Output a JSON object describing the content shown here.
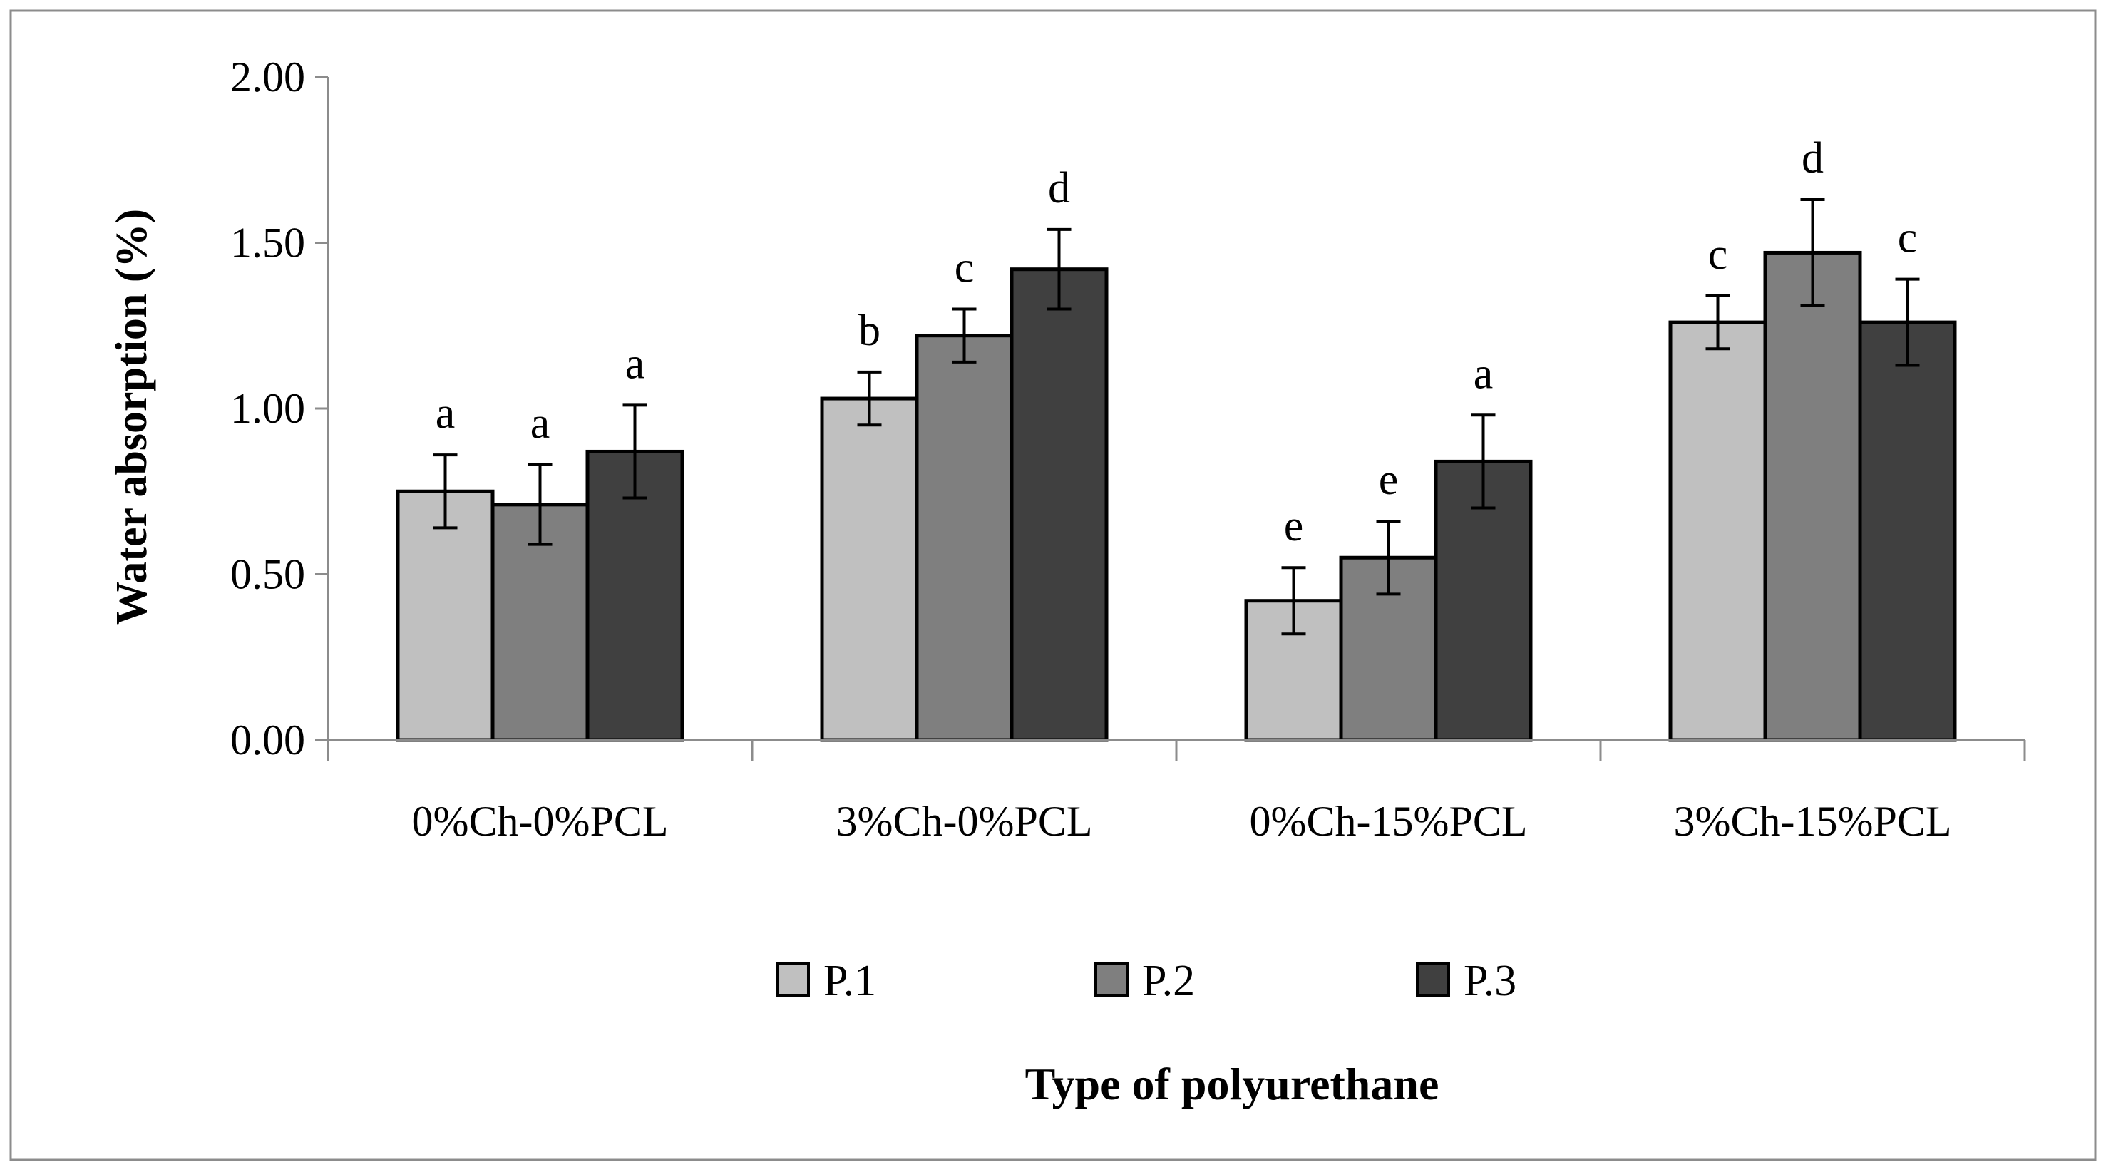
{
  "chart_data": {
    "type": "bar",
    "title": "",
    "xlabel": "Type of polyurethane",
    "ylabel": "Water absorption (%)",
    "ylim": [
      0,
      2
    ],
    "yticks": [
      "0.00",
      "0.50",
      "1.00",
      "1.50",
      "2.00"
    ],
    "categories": [
      "0%Ch-0%PCL",
      "3%Ch-0%PCL",
      "0%Ch-15%PCL",
      "3%Ch-15%PCL"
    ],
    "series": [
      {
        "name": "P.1",
        "color": "#c0c0c0",
        "values": [
          0.75,
          1.03,
          0.42,
          1.26
        ],
        "errors": [
          0.11,
          0.08,
          0.1,
          0.08
        ],
        "labels": [
          "a",
          "b",
          "e",
          "c"
        ]
      },
      {
        "name": "P.2",
        "color": "#7f7f7f",
        "values": [
          0.71,
          1.22,
          0.55,
          1.47
        ],
        "errors": [
          0.12,
          0.08,
          0.11,
          0.16
        ],
        "labels": [
          "a",
          "c",
          "e",
          "d"
        ]
      },
      {
        "name": "P.3",
        "color": "#404040",
        "values": [
          0.87,
          1.42,
          0.84,
          1.26
        ],
        "errors": [
          0.14,
          0.12,
          0.14,
          0.13
        ],
        "labels": [
          "a",
          "d",
          "a",
          "c"
        ]
      }
    ],
    "legend_position": "bottom",
    "grid": false
  }
}
